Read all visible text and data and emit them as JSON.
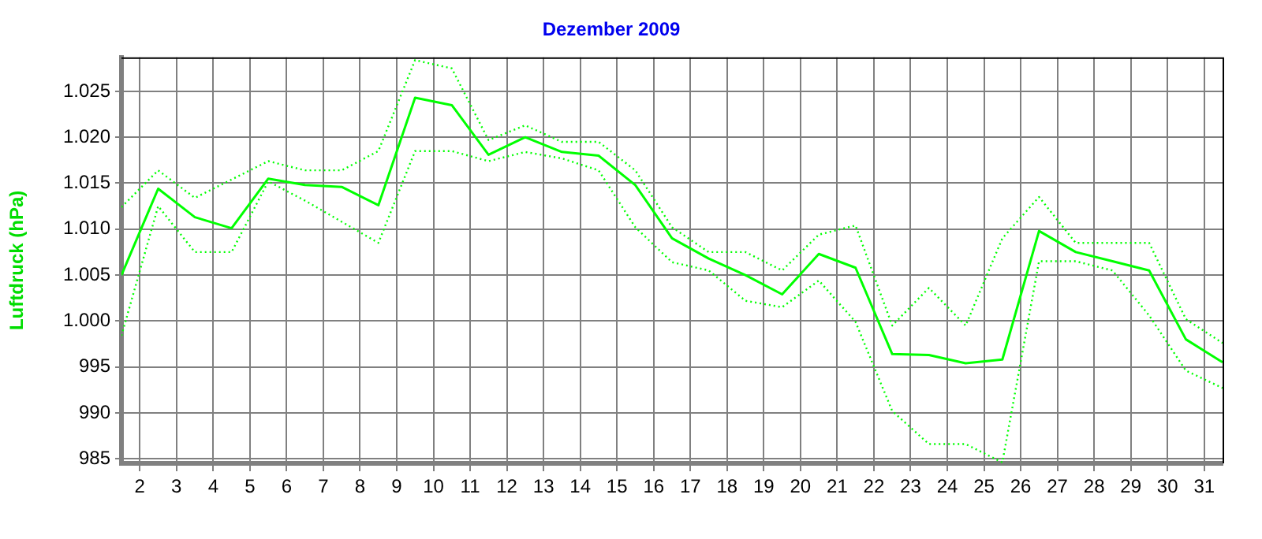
{
  "chart_data": {
    "type": "line",
    "title": "Dezember 2009",
    "ylabel": "Luftdruck (hPa)",
    "x": [
      1.5,
      2.5,
      3.5,
      4.5,
      5.5,
      6.5,
      7.5,
      8.5,
      9.5,
      10.5,
      11.5,
      12.5,
      13.5,
      14.5,
      15.5,
      16.5,
      17.5,
      18.5,
      19.5,
      20.5,
      21.5,
      22.5,
      23.5,
      24.5,
      25.5,
      26.5,
      27.5,
      28.5,
      29.5,
      30.5,
      31.5
    ],
    "series": [
      {
        "color": "#00ff00",
        "line_style": "solid",
        "values": [
          1005.0,
          1014.4,
          1011.3,
          1010.1,
          1015.5,
          1014.8,
          1014.6,
          1012.6,
          1024.3,
          1023.5,
          1018.1,
          1020.0,
          1018.4,
          1018.0,
          1014.8,
          1009.0,
          1006.8,
          1005.0,
          1002.9,
          1007.3,
          1005.8,
          996.4,
          996.3,
          995.4,
          995.8,
          1009.8,
          1007.5,
          1006.5,
          1005.5,
          998.0,
          995.5
        ]
      },
      {
        "color": "#00ff00",
        "line_style": "dotted",
        "values": [
          1012.4,
          1016.4,
          1013.4,
          1015.4,
          1017.4,
          1016.4,
          1016.4,
          1018.5,
          1028.4,
          1027.5,
          1019.7,
          1021.3,
          1019.5,
          1019.5,
          1016.4,
          1010.2,
          1007.5,
          1007.5,
          1005.5,
          1009.4,
          1010.4,
          999.5,
          1003.6,
          999.5,
          1009.0,
          1013.5,
          1008.5,
          1008.5,
          1008.5,
          1000.2,
          997.6
        ]
      },
      {
        "color": "#00ff00",
        "line_style": "dotted",
        "values": [
          998.4,
          1012.5,
          1007.5,
          1007.5,
          1015.2,
          1013.1,
          1010.8,
          1008.5,
          1018.5,
          1018.5,
          1017.4,
          1018.4,
          1017.7,
          1016.4,
          1010.2,
          1006.4,
          1005.5,
          1002.2,
          1001.5,
          1004.4,
          999.9,
          990.2,
          986.6,
          986.6,
          984.6,
          1006.5,
          1006.5,
          1005.5,
          1000.6,
          994.6,
          992.7
        ]
      }
    ],
    "xlim": [
      1.5,
      31.5
    ],
    "xticks": [
      2,
      3,
      4,
      5,
      6,
      7,
      8,
      9,
      10,
      11,
      12,
      13,
      14,
      15,
      16,
      17,
      18,
      19,
      20,
      21,
      22,
      23,
      24,
      25,
      26,
      27,
      28,
      29,
      30,
      31
    ],
    "ylim": [
      984.5,
      1028.7
    ],
    "yticks": [
      985,
      990,
      995,
      {
        "value": 1000,
        "label": "1.000"
      },
      {
        "value": 1005,
        "label": "1.005"
      },
      {
        "value": 1010,
        "label": "1.010"
      },
      {
        "value": 1015,
        "label": "1.015"
      },
      {
        "value": 1020,
        "label": "1.020"
      },
      {
        "value": 1025,
        "label": "1.025"
      }
    ],
    "grid": true,
    "legend": false,
    "marker": "none"
  }
}
